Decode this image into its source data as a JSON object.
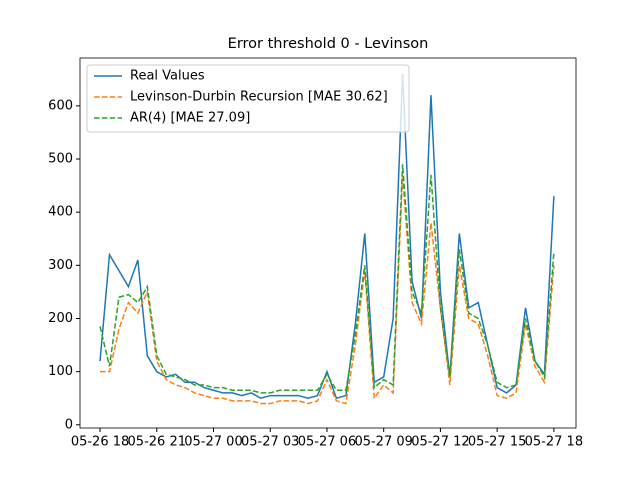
{
  "chart_data": {
    "type": "line",
    "title": "Error threshold 0 - Levinson",
    "x": [
      18,
      18.5,
      19,
      19.5,
      20,
      20.5,
      21,
      21.5,
      22,
      22.5,
      23,
      23.5,
      24,
      24.5,
      25,
      25.5,
      26,
      26.5,
      27,
      27.5,
      28,
      28.5,
      29,
      29.5,
      30,
      30.5,
      31,
      31.5,
      32,
      32.5,
      33,
      33.5,
      34,
      34.5,
      35,
      35.5,
      36,
      36.5,
      37,
      37.5,
      38,
      38.5,
      39,
      39.5,
      40,
      40.5,
      41,
      41.5,
      42
    ],
    "series": [
      {
        "name": "Real Values",
        "color": "#1f77b4",
        "linestyle": "-",
        "values": [
          120,
          320,
          290,
          260,
          310,
          130,
          100,
          90,
          95,
          80,
          80,
          70,
          65,
          60,
          60,
          55,
          60,
          50,
          55,
          55,
          55,
          55,
          50,
          55,
          100,
          50,
          55,
          190,
          360,
          80,
          90,
          200,
          660,
          270,
          200,
          620,
          250,
          90,
          360,
          220,
          230,
          150,
          70,
          60,
          75,
          220,
          120,
          95,
          430
        ]
      },
      {
        "name": "Levinson-Durbin Recursion [MAE 30.62]",
        "color": "#ff7f0e",
        "linestyle": "--",
        "values": [
          100,
          100,
          180,
          230,
          210,
          250,
          120,
          85,
          75,
          70,
          60,
          55,
          50,
          50,
          45,
          45,
          45,
          40,
          40,
          45,
          45,
          45,
          40,
          45,
          85,
          45,
          40,
          150,
          290,
          50,
          75,
          60,
          470,
          230,
          190,
          380,
          220,
          75,
          300,
          200,
          190,
          130,
          55,
          50,
          60,
          190,
          110,
          80,
          300
        ]
      },
      {
        "name": "AR(4) [MAE 27.09]",
        "color": "#2ca02c",
        "linestyle": "--",
        "values": [
          185,
          110,
          240,
          245,
          230,
          260,
          130,
          95,
          90,
          85,
          75,
          75,
          70,
          70,
          65,
          65,
          65,
          60,
          60,
          65,
          65,
          65,
          65,
          65,
          95,
          65,
          65,
          170,
          300,
          70,
          85,
          75,
          490,
          250,
          210,
          470,
          220,
          90,
          330,
          210,
          200,
          150,
          80,
          70,
          75,
          200,
          120,
          90,
          325
        ]
      }
    ],
    "xlim": [
      16.94,
      43.17
    ],
    "ylim": [
      -6,
      690
    ],
    "xticks": [
      {
        "value": 18,
        "label": "05-26 18"
      },
      {
        "value": 21,
        "label": "05-26 21"
      },
      {
        "value": 24,
        "label": "05-27 00"
      },
      {
        "value": 27,
        "label": "05-27 03"
      },
      {
        "value": 30,
        "label": "05-27 06"
      },
      {
        "value": 33,
        "label": "05-27 09"
      },
      {
        "value": 36,
        "label": "05-27 12"
      },
      {
        "value": 39,
        "label": "05-27 15"
      },
      {
        "value": 42,
        "label": "05-27 18"
      }
    ],
    "yticks": [
      0,
      100,
      200,
      300,
      400,
      500,
      600
    ],
    "legend": "upper left"
  }
}
